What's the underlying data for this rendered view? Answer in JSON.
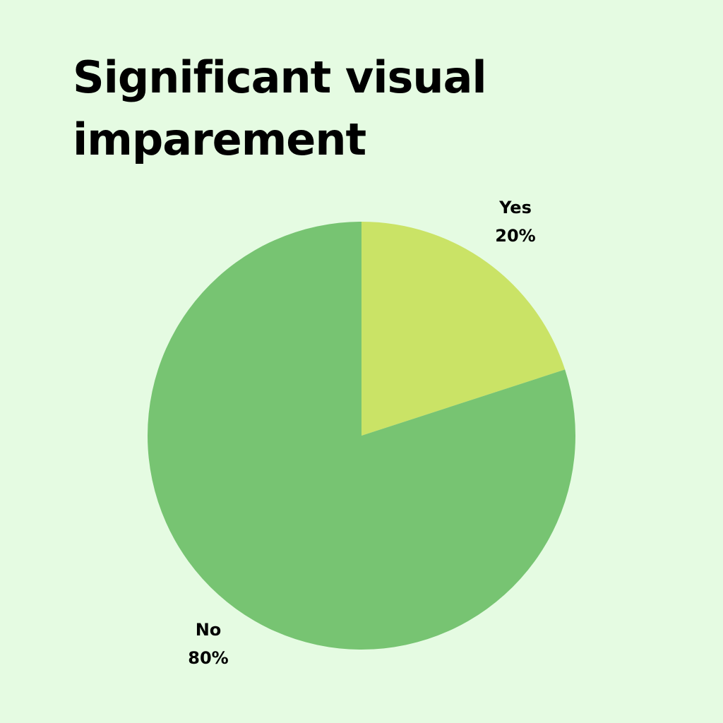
{
  "colors": {
    "background": "#e5fbe2",
    "text": "#000000"
  },
  "chart_data": {
    "type": "pie",
    "title": "Significant visual imparement",
    "categories": [
      "Yes",
      "No"
    ],
    "values": [
      20,
      80
    ],
    "value_labels": [
      "20%",
      "80%"
    ],
    "colors": [
      "#cae366",
      "#77c472"
    ],
    "legend": "none (labels beside slices)"
  }
}
